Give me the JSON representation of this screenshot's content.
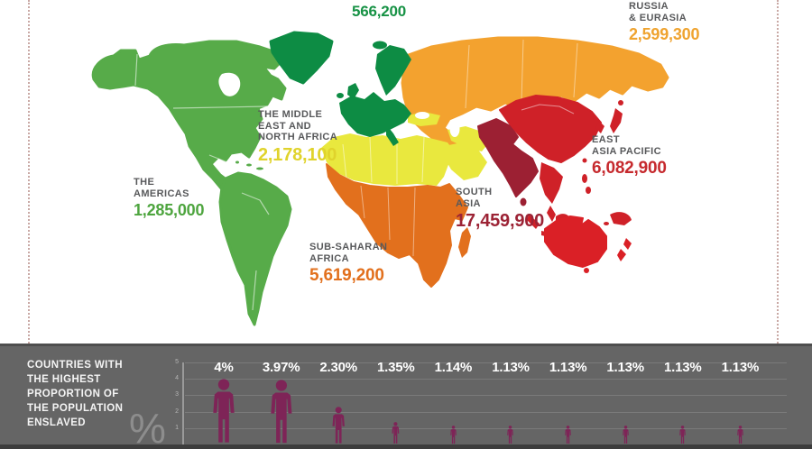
{
  "map": {
    "name_color": "#58595b",
    "regions": {
      "europe": {
        "value": "566,200",
        "color": "#0d8c44",
        "value_color": "#179245"
      },
      "russia_eurasia": {
        "name": "RUSSIA\n& EURASIA",
        "value": "2,599,300",
        "color": "#f3a22f",
        "value_color": "#efa32f"
      },
      "mena": {
        "name": "THE MIDDLE\nEAST AND\nNORTH AFRICA",
        "value": "2,178,100",
        "color": "#e9e83e",
        "value_color": "#e0d32c"
      },
      "americas": {
        "name": "THE\nAMERICAS",
        "value": "1,285,000",
        "color": "#57ab49",
        "value_color": "#4ea53f"
      },
      "east_asia_pacific": {
        "name": "EAST\nASIA PACIFIC",
        "value": "6,082,900",
        "color": "#cf2128",
        "value_color": "#c62a2e"
      },
      "south_asia": {
        "name": "SOUTH\nASIA",
        "value": "17,459,900",
        "color": "#9c2033",
        "value_color": "#9c2335"
      },
      "subsaharan_africa": {
        "name": "SUB-SAHARAN\nAFRICA",
        "value": "5,619,200",
        "color": "#e2701d",
        "value_color": "#e2701d"
      },
      "australia": {
        "color": "#da2026"
      }
    }
  },
  "bottom_chart": {
    "title": "COUNTRIES WITH\nTHE HIGHEST\nPROPORTION OF\nTHE POPULATION\nENSLAVED",
    "ylabel_symbol": "%",
    "person_color": "#7e2457",
    "panel_bg": "#656565"
  },
  "chart_data": [
    {
      "type": "choropleth_map",
      "title": "",
      "regions": [
        {
          "region": "The Americas",
          "value": 1285000
        },
        {
          "region": "Europe",
          "value": 566200
        },
        {
          "region": "Russia & Eurasia",
          "value": 2599300
        },
        {
          "region": "The Middle East and North Africa",
          "value": 2178100
        },
        {
          "region": "Sub-Saharan Africa",
          "value": 5619200
        },
        {
          "region": "South Asia",
          "value": 17459900
        },
        {
          "region": "East Asia Pacific",
          "value": 6082900
        }
      ]
    },
    {
      "type": "bar",
      "title": "COUNTRIES WITH THE HIGHEST PROPORTION OF THE POPULATION ENSLAVED",
      "ylabel": "%",
      "labels": [
        "4%",
        "3.97%",
        "2.30%",
        "1.35%",
        "1.14%",
        "1.13%",
        "1.13%",
        "1.13%",
        "1.13%",
        "1.13%"
      ],
      "values": [
        4,
        3.97,
        2.3,
        1.35,
        1.14,
        1.13,
        1.13,
        1.13,
        1.13,
        1.13
      ],
      "ylim": [
        0,
        5
      ],
      "yticks": [
        1,
        2,
        3,
        4,
        5
      ],
      "grid": true,
      "legend": false
    }
  ]
}
